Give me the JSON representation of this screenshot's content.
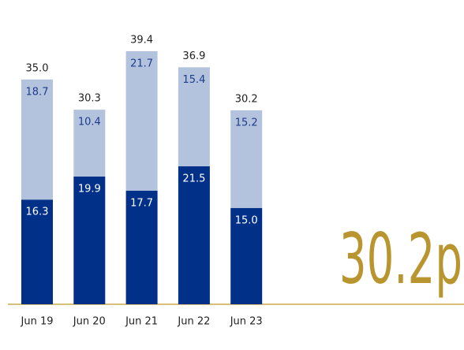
{
  "chart_data": {
    "type": "stacked_bar",
    "categories": [
      "Jun 19",
      "Jun 20",
      "Jun 21",
      "Jun 22",
      "Jun 23"
    ],
    "series": [
      {
        "color": "#003087",
        "values": [
          16.3,
          19.9,
          17.7,
          21.5,
          15.0
        ],
        "value_labels": [
          "16.3",
          "19.9",
          "17.7",
          "21.5",
          "15.0"
        ]
      },
      {
        "color": "#b3c3de",
        "values": [
          18.7,
          10.4,
          21.7,
          15.4,
          15.2
        ],
        "value_labels": [
          "18.7",
          "10.4",
          "21.7",
          "15.4",
          "15.2"
        ]
      }
    ],
    "totals": [
      35.0,
      30.3,
      39.4,
      36.9,
      30.2
    ],
    "totals_labels": [
      "35.0",
      "30.3",
      "39.4",
      "36.9",
      "30.2"
    ],
    "annotation": "30.2p"
  }
}
